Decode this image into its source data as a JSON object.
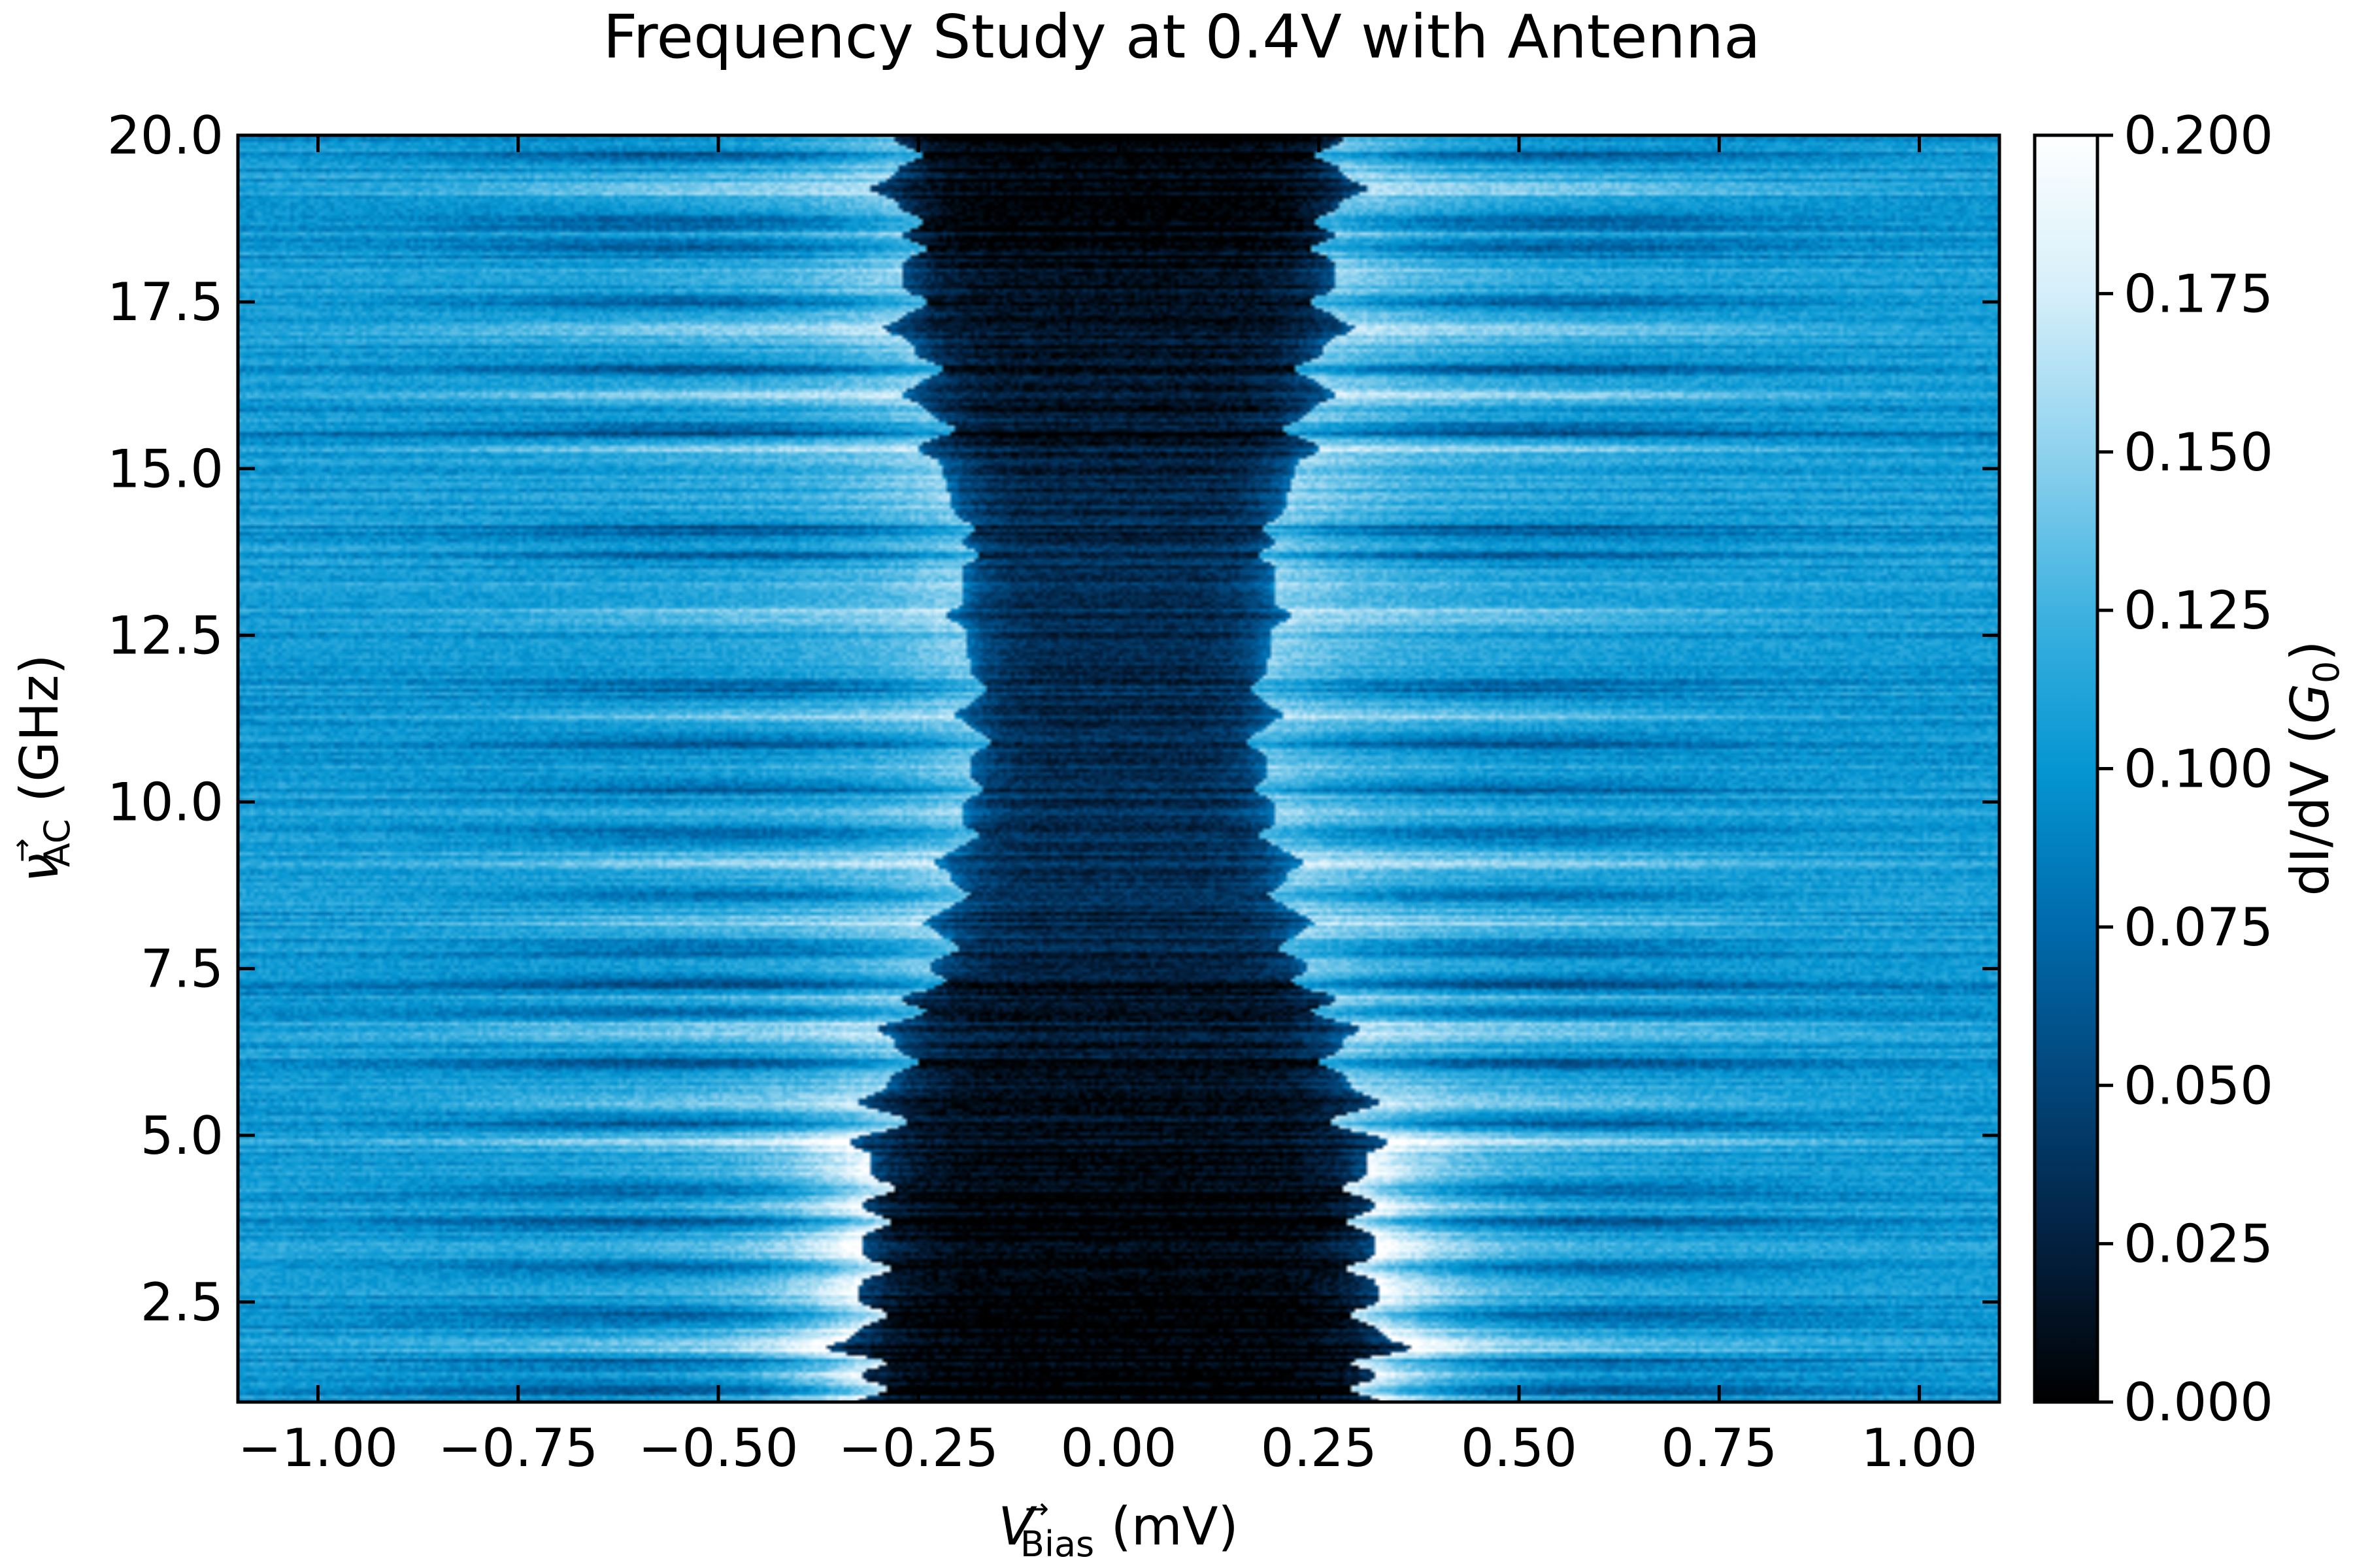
{
  "chart_data": {
    "type": "heatmap",
    "title": "Frequency Study at 0.4V with Antenna",
    "xlabel": {
      "symbol": "V",
      "arrow": "→",
      "subscript": "Bias",
      "unit": " (mV)"
    },
    "ylabel": {
      "symbol": "ν",
      "arrow": "→",
      "subscript": "AC",
      "unit": " (GHz)"
    },
    "colorbar_label": {
      "prefix": "dI/dV (",
      "symbol": "G",
      "subscript": "0",
      "suffix": ")"
    },
    "xlim": [
      -1.1,
      1.1
    ],
    "ylim": [
      1.0,
      20.0
    ],
    "clim": [
      0.0,
      0.2
    ],
    "x_ticks": [
      -1.0,
      -0.75,
      -0.5,
      -0.25,
      0.0,
      0.25,
      0.5,
      0.75,
      1.0
    ],
    "x_tick_labels": [
      "−1.00",
      "−0.75",
      "−0.50",
      "−0.25",
      "0.00",
      "0.25",
      "0.50",
      "0.75",
      "1.00"
    ],
    "y_ticks": [
      2.5,
      5.0,
      7.5,
      10.0,
      12.5,
      15.0,
      17.5,
      20.0
    ],
    "y_tick_labels": [
      "2.5",
      "5.0",
      "7.5",
      "10.0",
      "12.5",
      "15.0",
      "17.5",
      "20.0"
    ],
    "colorbar_ticks": [
      0.0,
      0.025,
      0.05,
      0.075,
      0.1,
      0.125,
      0.15,
      0.175,
      0.2
    ],
    "colorbar_tick_labels": [
      "0.000",
      "0.025",
      "0.050",
      "0.075",
      "0.100",
      "0.125",
      "0.150",
      "0.175",
      "0.200"
    ],
    "colormap": [
      "#000000",
      "#03203f",
      "#024579",
      "#006aac",
      "#0596d2",
      "#3fb2e0",
      "#8fd2ee",
      "#d5effa",
      "#ffffff"
    ],
    "grid": false,
    "background_value": 0.105,
    "gap_profile": [
      {
        "freq": 1.0,
        "gap_mV": 0.33,
        "conductance": 0.0
      },
      {
        "freq": 4.0,
        "gap_mV": 0.32,
        "conductance": 0.0
      },
      {
        "freq": 5.0,
        "gap_mV": 0.3,
        "conductance": 0.01
      },
      {
        "freq": 6.3,
        "gap_mV": 0.28,
        "conductance": 0.015
      },
      {
        "freq": 8.0,
        "gap_mV": 0.22,
        "conductance": 0.03
      },
      {
        "freq": 11.0,
        "gap_mV": 0.18,
        "conductance": 0.035
      },
      {
        "freq": 14.0,
        "gap_mV": 0.2,
        "conductance": 0.03
      },
      {
        "freq": 17.5,
        "gap_mV": 0.27,
        "conductance": 0.01
      },
      {
        "freq": 20.0,
        "gap_mV": 0.28,
        "conductance": 0.0
      }
    ],
    "peak_value_low_freq": 0.2,
    "peak_value_high_freq": 0.15,
    "dark_bands_GHz": [
      1.2,
      1.6,
      2.3,
      3.0,
      3.7,
      4.2,
      5.2,
      6.1,
      6.9,
      7.3,
      7.8,
      8.6,
      9.5,
      10.2,
      10.9,
      11.7,
      13.7,
      14.1,
      15.6,
      16.5,
      17.5,
      18.3,
      18.7,
      19.7
    ],
    "bright_bands_GHz": [
      1.8,
      4.9,
      5.5,
      6.6,
      7.0,
      8.2,
      9.1,
      11.3,
      12.8,
      15.3,
      16.1,
      17.1,
      19.2
    ],
    "flat_dark_rows_GHz": [
      7.2,
      15.5,
      15.9,
      19.0
    ]
  }
}
